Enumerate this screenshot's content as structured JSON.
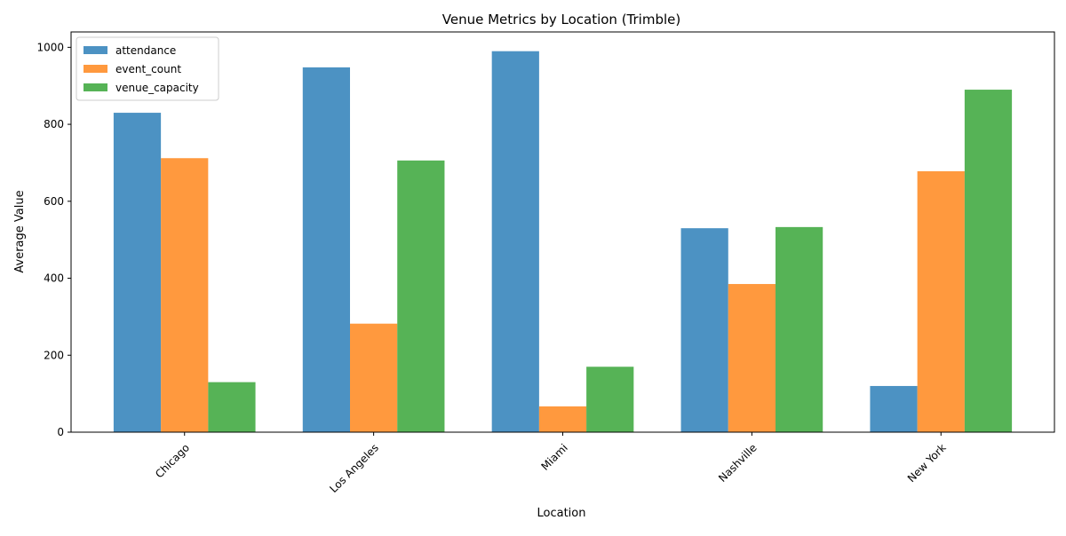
{
  "chart_data": {
    "type": "bar",
    "title": "Venue Metrics by Location (Trimble)",
    "xlabel": "Location",
    "ylabel": "Average Value",
    "categories": [
      "Chicago",
      "Los Angeles",
      "Miami",
      "Nashville",
      "New York"
    ],
    "series": [
      {
        "name": "attendance",
        "color": "#1f77b4",
        "values": [
          830,
          948,
          990,
          530,
          120
        ]
      },
      {
        "name": "event_count",
        "color": "#ff7f0e",
        "values": [
          712,
          282,
          67,
          385,
          678
        ]
      },
      {
        "name": "venue_capacity",
        "color": "#2ca02c",
        "values": [
          130,
          706,
          170,
          533,
          890
        ]
      }
    ],
    "ylim": [
      0,
      1040
    ],
    "yticks": [
      0,
      200,
      400,
      600,
      800,
      1000
    ],
    "grid": false,
    "legend_position": "upper left",
    "x_tick_rotation": 45
  }
}
